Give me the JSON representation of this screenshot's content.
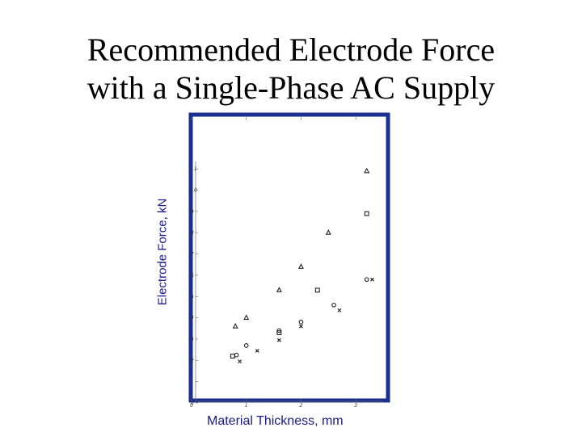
{
  "chart_data": {
    "type": "scatter",
    "title_line1": "Recommended Electrode Force",
    "title_line2": "with a Single-Phase AC Supply",
    "xlabel": "Material Thickness, mm",
    "ylabel": "Electrode Force, kN",
    "xlim": [
      0,
      3.5
    ],
    "ylim": [
      0,
      11.5
    ],
    "x_ticks": [
      "0",
      "1",
      "2",
      "3"
    ],
    "y_ticks": [
      "0",
      "1",
      "2",
      "3",
      "4",
      "5",
      "6",
      "7",
      "8",
      "9",
      "10",
      "11"
    ],
    "grid": false,
    "frame_color": "#1a2f8f",
    "series": [
      {
        "marker": "triangle",
        "points": [
          [
            0.8,
            3.6
          ],
          [
            1.0,
            4.0
          ],
          [
            1.6,
            5.3
          ],
          [
            2.0,
            6.4
          ],
          [
            2.5,
            8.0
          ],
          [
            3.2,
            10.9
          ]
        ]
      },
      {
        "marker": "square",
        "points": [
          [
            0.75,
            2.2
          ],
          [
            1.6,
            3.3
          ],
          [
            2.3,
            5.3
          ],
          [
            3.2,
            8.9
          ]
        ]
      },
      {
        "marker": "circle",
        "points": [
          [
            0.82,
            2.25
          ],
          [
            1.0,
            2.7
          ],
          [
            1.6,
            3.4
          ],
          [
            2.0,
            3.8
          ],
          [
            2.6,
            4.6
          ],
          [
            3.2,
            5.8
          ]
        ]
      },
      {
        "marker": "cross",
        "points": [
          [
            0.88,
            1.95
          ],
          [
            1.2,
            2.45
          ],
          [
            1.6,
            2.95
          ],
          [
            2.0,
            3.6
          ],
          [
            2.7,
            4.35
          ],
          [
            3.3,
            5.8
          ]
        ]
      }
    ]
  }
}
